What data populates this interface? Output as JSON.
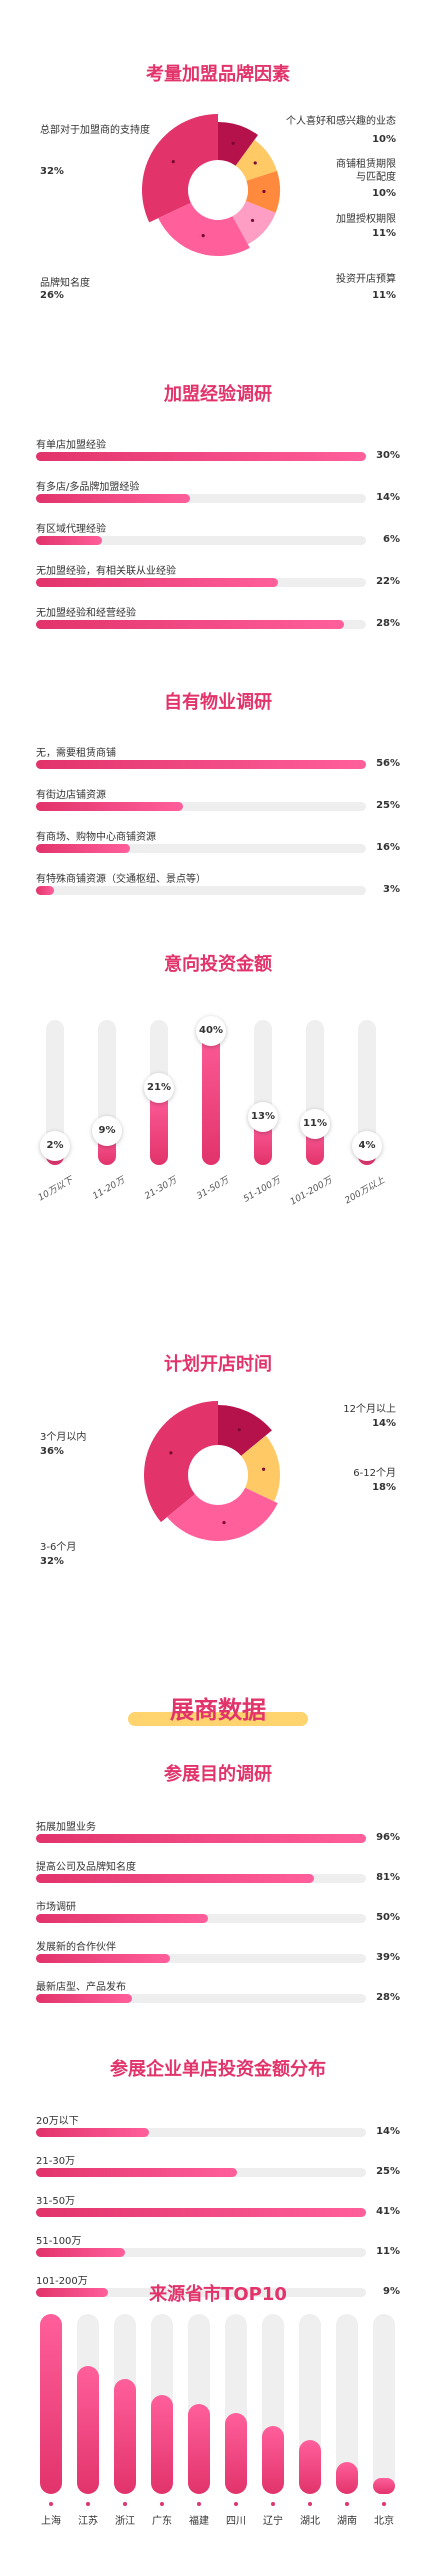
{
  "colors": {
    "accent": "#e2336b",
    "pink": "#ff5f9b",
    "dark": "#b5124c",
    "orange": "#ff8a3d",
    "yellow": "#ffc966",
    "track": "#eeeeee"
  },
  "chart_data": [
    {
      "type": "pie",
      "title": "考量加盟品牌因素",
      "slices": [
        {
          "label": "个人喜好和感兴趣的业态",
          "value": 10,
          "color": "#b5124c"
        },
        {
          "label": "商铺租赁期限与匹配度",
          "value": 10,
          "color": "#ffc966"
        },
        {
          "label": "加盟授权期限",
          "value": 11,
          "color": "#ff8a3d"
        },
        {
          "label": "投资开店预算",
          "value": 11,
          "color": "#ff9ec4"
        },
        {
          "label": "品牌知名度",
          "value": 26,
          "color": "#ff5f9b"
        },
        {
          "label": "总部对于加盟商的支持度",
          "value": 32,
          "color": "#e2336b"
        }
      ]
    },
    {
      "type": "bar",
      "title": "加盟经验调研",
      "categories": [
        "有单店加盟经验",
        "有多店/多品牌加盟经验",
        "有区域代理经验",
        "无加盟经验，有相关联从业经验",
        "无加盟经验和经营经验"
      ],
      "values": [
        30,
        14,
        6,
        22,
        28
      ],
      "unit": "%"
    },
    {
      "type": "bar",
      "title": "自有物业调研",
      "categories": [
        "无，需要租赁商铺",
        "有街边店铺资源",
        "有商场、购物中心商铺资源",
        "有特殊商铺资源（交通枢纽、景点等）"
      ],
      "values": [
        56,
        25,
        16,
        3
      ],
      "unit": "%"
    },
    {
      "type": "bar",
      "orientation": "vertical",
      "title": "意向投资金额",
      "categories": [
        "10万以下",
        "11-20万",
        "21-30万",
        "31-50万",
        "51-100万",
        "101-200万",
        "200万以上"
      ],
      "values": [
        2,
        9,
        21,
        40,
        13,
        11,
        4
      ],
      "unit": "%"
    },
    {
      "type": "pie",
      "title": "计划开店时间",
      "slices": [
        {
          "label": "12个月以上",
          "value": 14,
          "color": "#b5124c"
        },
        {
          "label": "6-12个月",
          "value": 18,
          "color": "#ffc966"
        },
        {
          "label": "3-6个月",
          "value": 32,
          "color": "#ff5f9b"
        },
        {
          "label": "3个月以内",
          "value": 36,
          "color": "#e2336b"
        }
      ]
    },
    {
      "type": "bar",
      "title": "参展目的调研",
      "categories": [
        "拓展加盟业务",
        "提高公司及品牌知名度",
        "市场调研",
        "发展新的合作伙伴",
        "最新店型、产品发布"
      ],
      "values": [
        96,
        81,
        50,
        39,
        28
      ],
      "unit": "%"
    },
    {
      "type": "bar",
      "title": "参展企业单店投资金额分布",
      "categories": [
        "20万以下",
        "21-30万",
        "31-50万",
        "51-100万",
        "101-200万"
      ],
      "values": [
        14,
        25,
        41,
        11,
        9
      ],
      "unit": "%"
    },
    {
      "type": "bar",
      "orientation": "vertical",
      "title": "来源省市TOP10",
      "categories": [
        "上海",
        "江苏",
        "浙江",
        "广东",
        "福建",
        "四川",
        "辽宁",
        "湖北",
        "湖南",
        "北京"
      ],
      "values": [
        100,
        71,
        64,
        55,
        50,
        45,
        38,
        30,
        18,
        9
      ],
      "value_scale": "relative"
    }
  ],
  "texts": {
    "banner": "展商数据",
    "pie1_pct": [
      "10%",
      "10%",
      "11%",
      "11%",
      "26%",
      "32%"
    ],
    "pie2_pct": [
      "14%",
      "18%",
      "32%",
      "36%"
    ]
  }
}
